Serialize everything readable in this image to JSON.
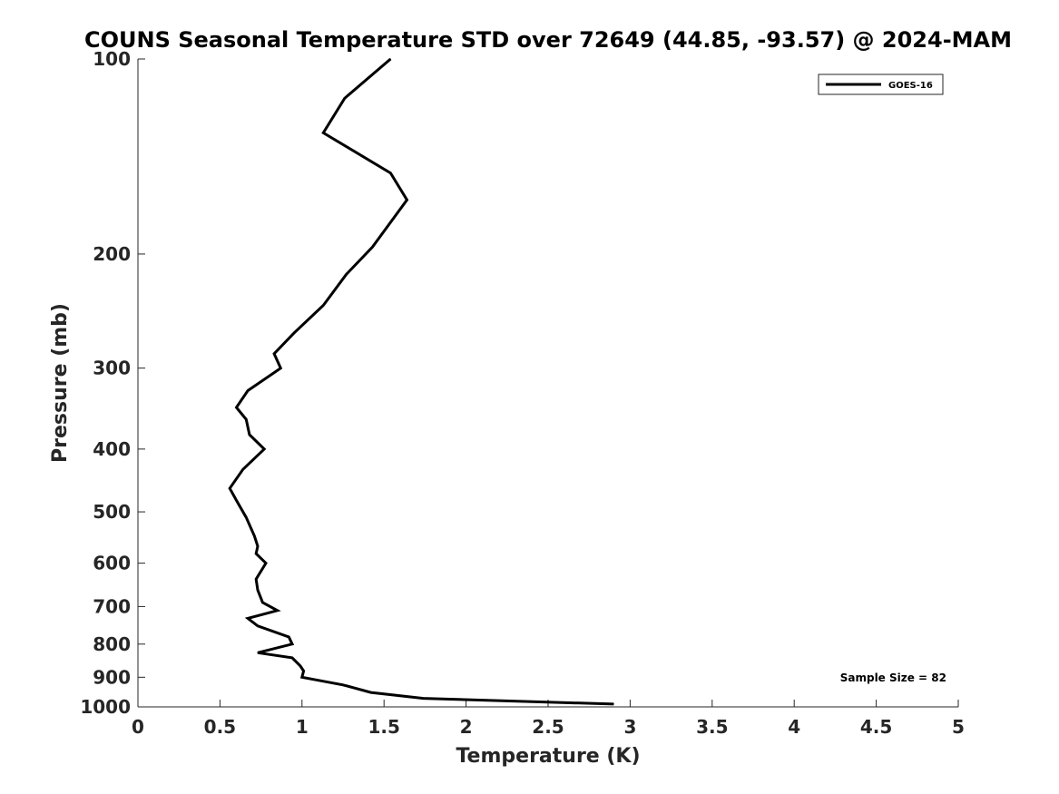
{
  "chart_data": {
    "type": "line",
    "title": "COUNS Seasonal Temperature STD over 72649 (44.85, -93.57) @ 2024-MAM",
    "xlabel": "Temperature (K)",
    "ylabel": "Pressure (mb)",
    "xlim": [
      0,
      5
    ],
    "ylim": [
      100,
      1000
    ],
    "y_scale": "log",
    "y_reversed": true,
    "grid": false,
    "x_ticks": [
      "0",
      "0.5",
      "1",
      "1.5",
      "2",
      "2.5",
      "3",
      "3.5",
      "4",
      "4.5",
      "5"
    ],
    "y_ticks": [
      "100",
      "200",
      "300",
      "400",
      "500",
      "600",
      "700",
      "800",
      "900",
      "1000"
    ],
    "legend": {
      "position": "top-right",
      "entries": [
        "GOES-16"
      ]
    },
    "annotation": "Sample Size = 82",
    "series": [
      {
        "name": "GOES-16",
        "color": "#000000",
        "points": [
          [
            1.54,
            100
          ],
          [
            1.26,
            115
          ],
          [
            1.13,
            130
          ],
          [
            1.54,
            150
          ],
          [
            1.64,
            165
          ],
          [
            1.43,
            195
          ],
          [
            1.27,
            215
          ],
          [
            1.13,
            240
          ],
          [
            0.95,
            265
          ],
          [
            0.83,
            285
          ],
          [
            0.87,
            300
          ],
          [
            0.67,
            325
          ],
          [
            0.6,
            345
          ],
          [
            0.66,
            360
          ],
          [
            0.68,
            380
          ],
          [
            0.77,
            400
          ],
          [
            0.64,
            430
          ],
          [
            0.56,
            460
          ],
          [
            0.6,
            480
          ],
          [
            0.66,
            510
          ],
          [
            0.71,
            545
          ],
          [
            0.73,
            565
          ],
          [
            0.72,
            580
          ],
          [
            0.78,
            600
          ],
          [
            0.72,
            635
          ],
          [
            0.73,
            660
          ],
          [
            0.76,
            690
          ],
          [
            0.85,
            710
          ],
          [
            0.67,
            730
          ],
          [
            0.73,
            750
          ],
          [
            0.92,
            780
          ],
          [
            0.94,
            800
          ],
          [
            0.73,
            825
          ],
          [
            0.94,
            840
          ],
          [
            0.99,
            865
          ],
          [
            1.01,
            880
          ],
          [
            1.0,
            900
          ],
          [
            1.25,
            925
          ],
          [
            1.42,
            950
          ],
          [
            1.74,
            970
          ],
          [
            2.9,
            990
          ]
        ]
      }
    ]
  }
}
